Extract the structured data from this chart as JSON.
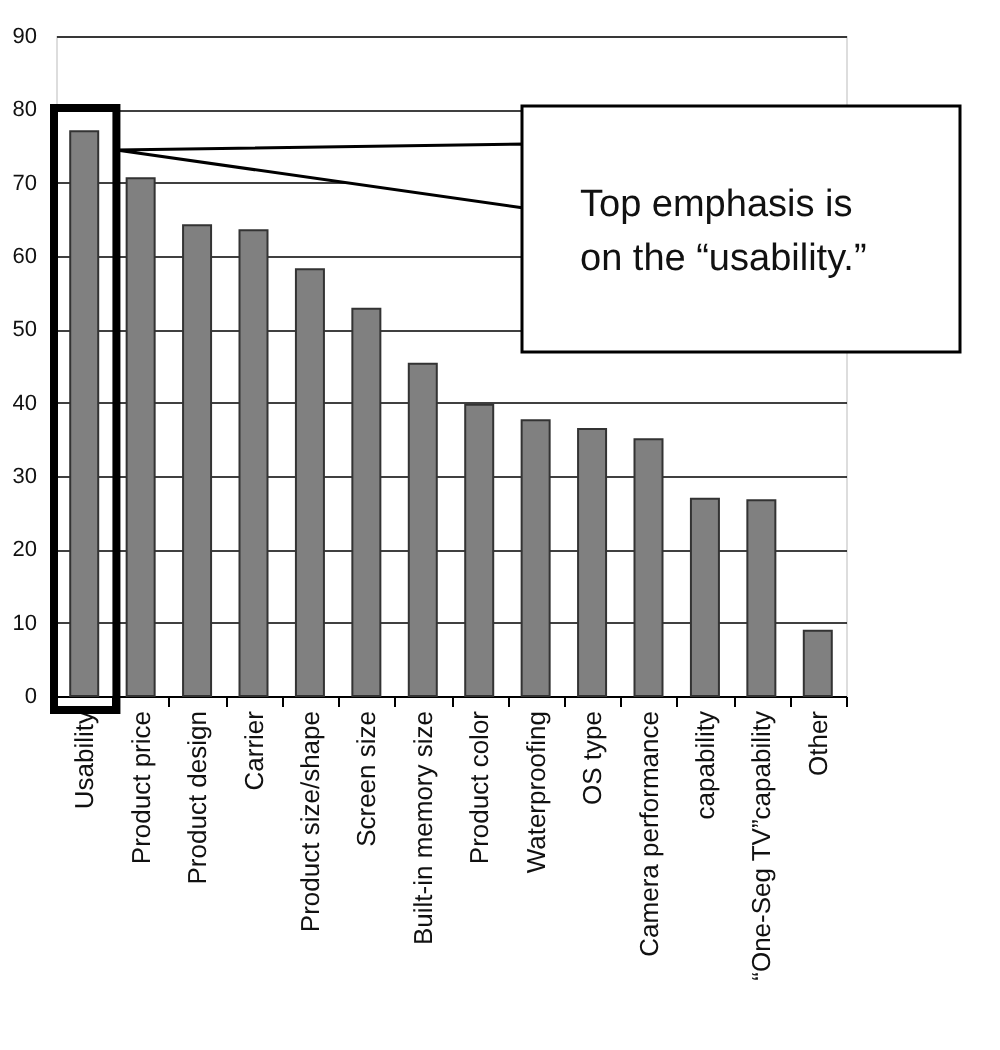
{
  "chart_data": {
    "type": "bar",
    "categories": [
      "Usability",
      "Product price",
      "Product design",
      "Carrier",
      "Product size/shape",
      "Screen size",
      "Built-in memory size",
      "Product color",
      "Waterproofing",
      "OS type",
      "Camera performance",
      "capability",
      "“One-Seg TV”capability",
      "Other"
    ],
    "values": [
      77.0,
      70.6,
      64.2,
      63.5,
      58.2,
      52.8,
      45.3,
      39.7,
      37.6,
      36.4,
      35.0,
      26.9,
      26.7,
      8.9
    ],
    "color": "#808080",
    "ylim": [
      0,
      90
    ],
    "yticks": [
      0,
      10,
      20,
      30,
      40,
      50,
      60,
      70,
      80,
      90
    ],
    "grid": "y",
    "legend": false,
    "annotations": [
      "Top emphasis is\non the “usability.”"
    ]
  }
}
